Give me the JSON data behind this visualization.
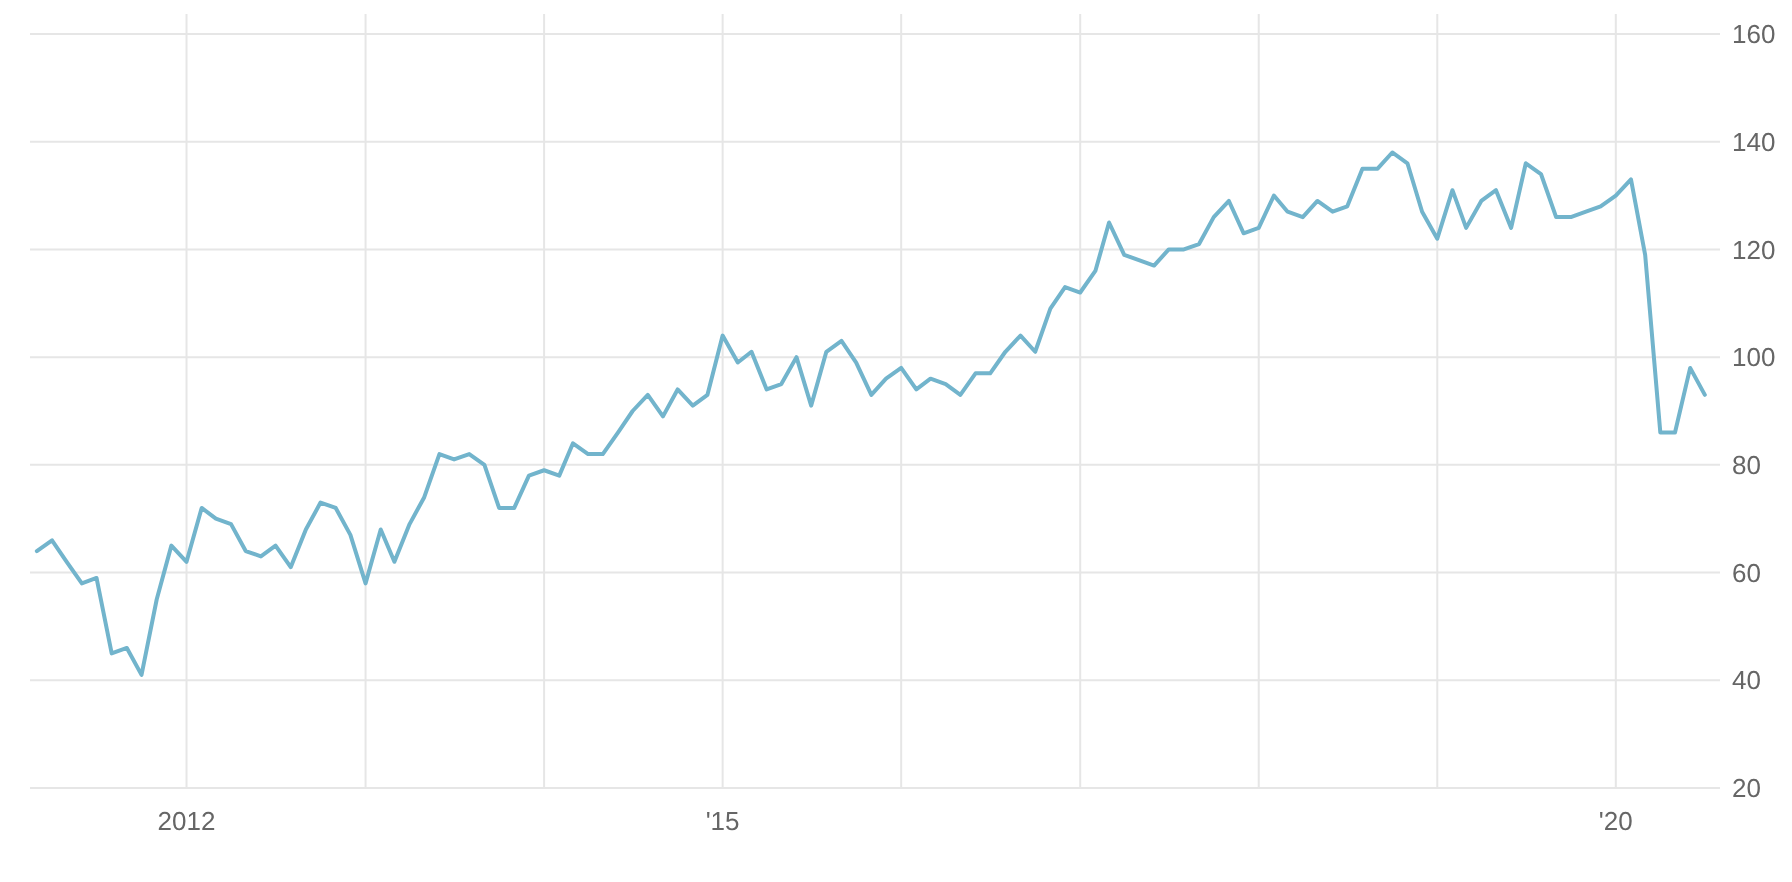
{
  "chart_data": {
    "type": "line",
    "x": [
      "2011-03",
      "2011-04",
      "2011-05",
      "2011-06",
      "2011-07",
      "2011-08",
      "2011-09",
      "2011-10",
      "2011-11",
      "2011-12",
      "2012-01",
      "2012-02",
      "2012-03",
      "2012-04",
      "2012-05",
      "2012-06",
      "2012-07",
      "2012-08",
      "2012-09",
      "2012-10",
      "2012-11",
      "2012-12",
      "2013-01",
      "2013-02",
      "2013-03",
      "2013-04",
      "2013-05",
      "2013-06",
      "2013-07",
      "2013-08",
      "2013-09",
      "2013-10",
      "2013-11",
      "2013-12",
      "2014-01",
      "2014-02",
      "2014-03",
      "2014-04",
      "2014-05",
      "2014-06",
      "2014-07",
      "2014-08",
      "2014-09",
      "2014-10",
      "2014-11",
      "2014-12",
      "2015-01",
      "2015-02",
      "2015-03",
      "2015-04",
      "2015-05",
      "2015-06",
      "2015-07",
      "2015-08",
      "2015-09",
      "2015-10",
      "2015-11",
      "2015-12",
      "2016-01",
      "2016-02",
      "2016-03",
      "2016-04",
      "2016-05",
      "2016-06",
      "2016-07",
      "2016-08",
      "2016-09",
      "2016-10",
      "2016-11",
      "2016-12",
      "2017-01",
      "2017-02",
      "2017-03",
      "2017-04",
      "2017-05",
      "2017-06",
      "2017-07",
      "2017-08",
      "2017-09",
      "2017-10",
      "2017-11",
      "2017-12",
      "2018-01",
      "2018-02",
      "2018-03",
      "2018-04",
      "2018-05",
      "2018-06",
      "2018-07",
      "2018-08",
      "2018-09",
      "2018-10",
      "2018-11",
      "2018-12",
      "2019-01",
      "2019-02",
      "2019-03",
      "2019-04",
      "2019-05",
      "2019-06",
      "2019-07",
      "2019-08",
      "2019-09",
      "2019-10",
      "2019-11",
      "2019-12",
      "2020-01",
      "2020-02",
      "2020-03",
      "2020-04",
      "2020-05",
      "2020-06",
      "2020-07"
    ],
    "series": [
      {
        "color": "#72b4cc",
        "values": [
          64,
          66,
          62,
          58,
          59,
          45,
          46,
          41,
          55,
          65,
          62,
          72,
          70,
          69,
          64,
          63,
          65,
          61,
          68,
          73,
          72,
          67,
          58,
          68,
          62,
          69,
          74,
          82,
          81,
          82,
          80,
          72,
          72,
          78,
          79,
          78,
          84,
          82,
          82,
          86,
          90,
          93,
          89,
          94,
          91,
          93,
          104,
          99,
          101,
          94,
          95,
          100,
          91,
          101,
          103,
          99,
          93,
          96,
          98,
          94,
          96,
          95,
          93,
          97,
          97,
          101,
          104,
          101,
          109,
          113,
          112,
          116,
          125,
          119,
          118,
          117,
          120,
          120,
          121,
          126,
          129,
          123,
          124,
          130,
          127,
          126,
          129,
          127,
          128,
          135,
          135,
          138,
          136,
          127,
          122,
          131,
          124,
          129,
          131,
          124,
          136,
          134,
          126,
          126,
          127,
          128,
          130,
          133,
          119,
          86,
          86,
          98,
          93
        ]
      }
    ],
    "xlim": [
      "2011-02-15",
      "2020-08-01"
    ],
    "xticks": [
      {
        "value": "2012",
        "label": "2012"
      },
      {
        "value": "2013",
        "label": null
      },
      {
        "value": "2014",
        "label": null
      },
      {
        "value": "2015",
        "label": "'15"
      },
      {
        "value": "2016",
        "label": null
      },
      {
        "value": "2017",
        "label": null
      },
      {
        "value": "2018",
        "label": null
      },
      {
        "value": "2019",
        "label": null
      },
      {
        "value": "2020",
        "label": "'20"
      }
    ],
    "ylim": [
      20,
      160
    ],
    "yticks": [
      20,
      40,
      60,
      80,
      100,
      120,
      140,
      160
    ],
    "grid": true,
    "marker": "none",
    "line_style": "solid"
  }
}
